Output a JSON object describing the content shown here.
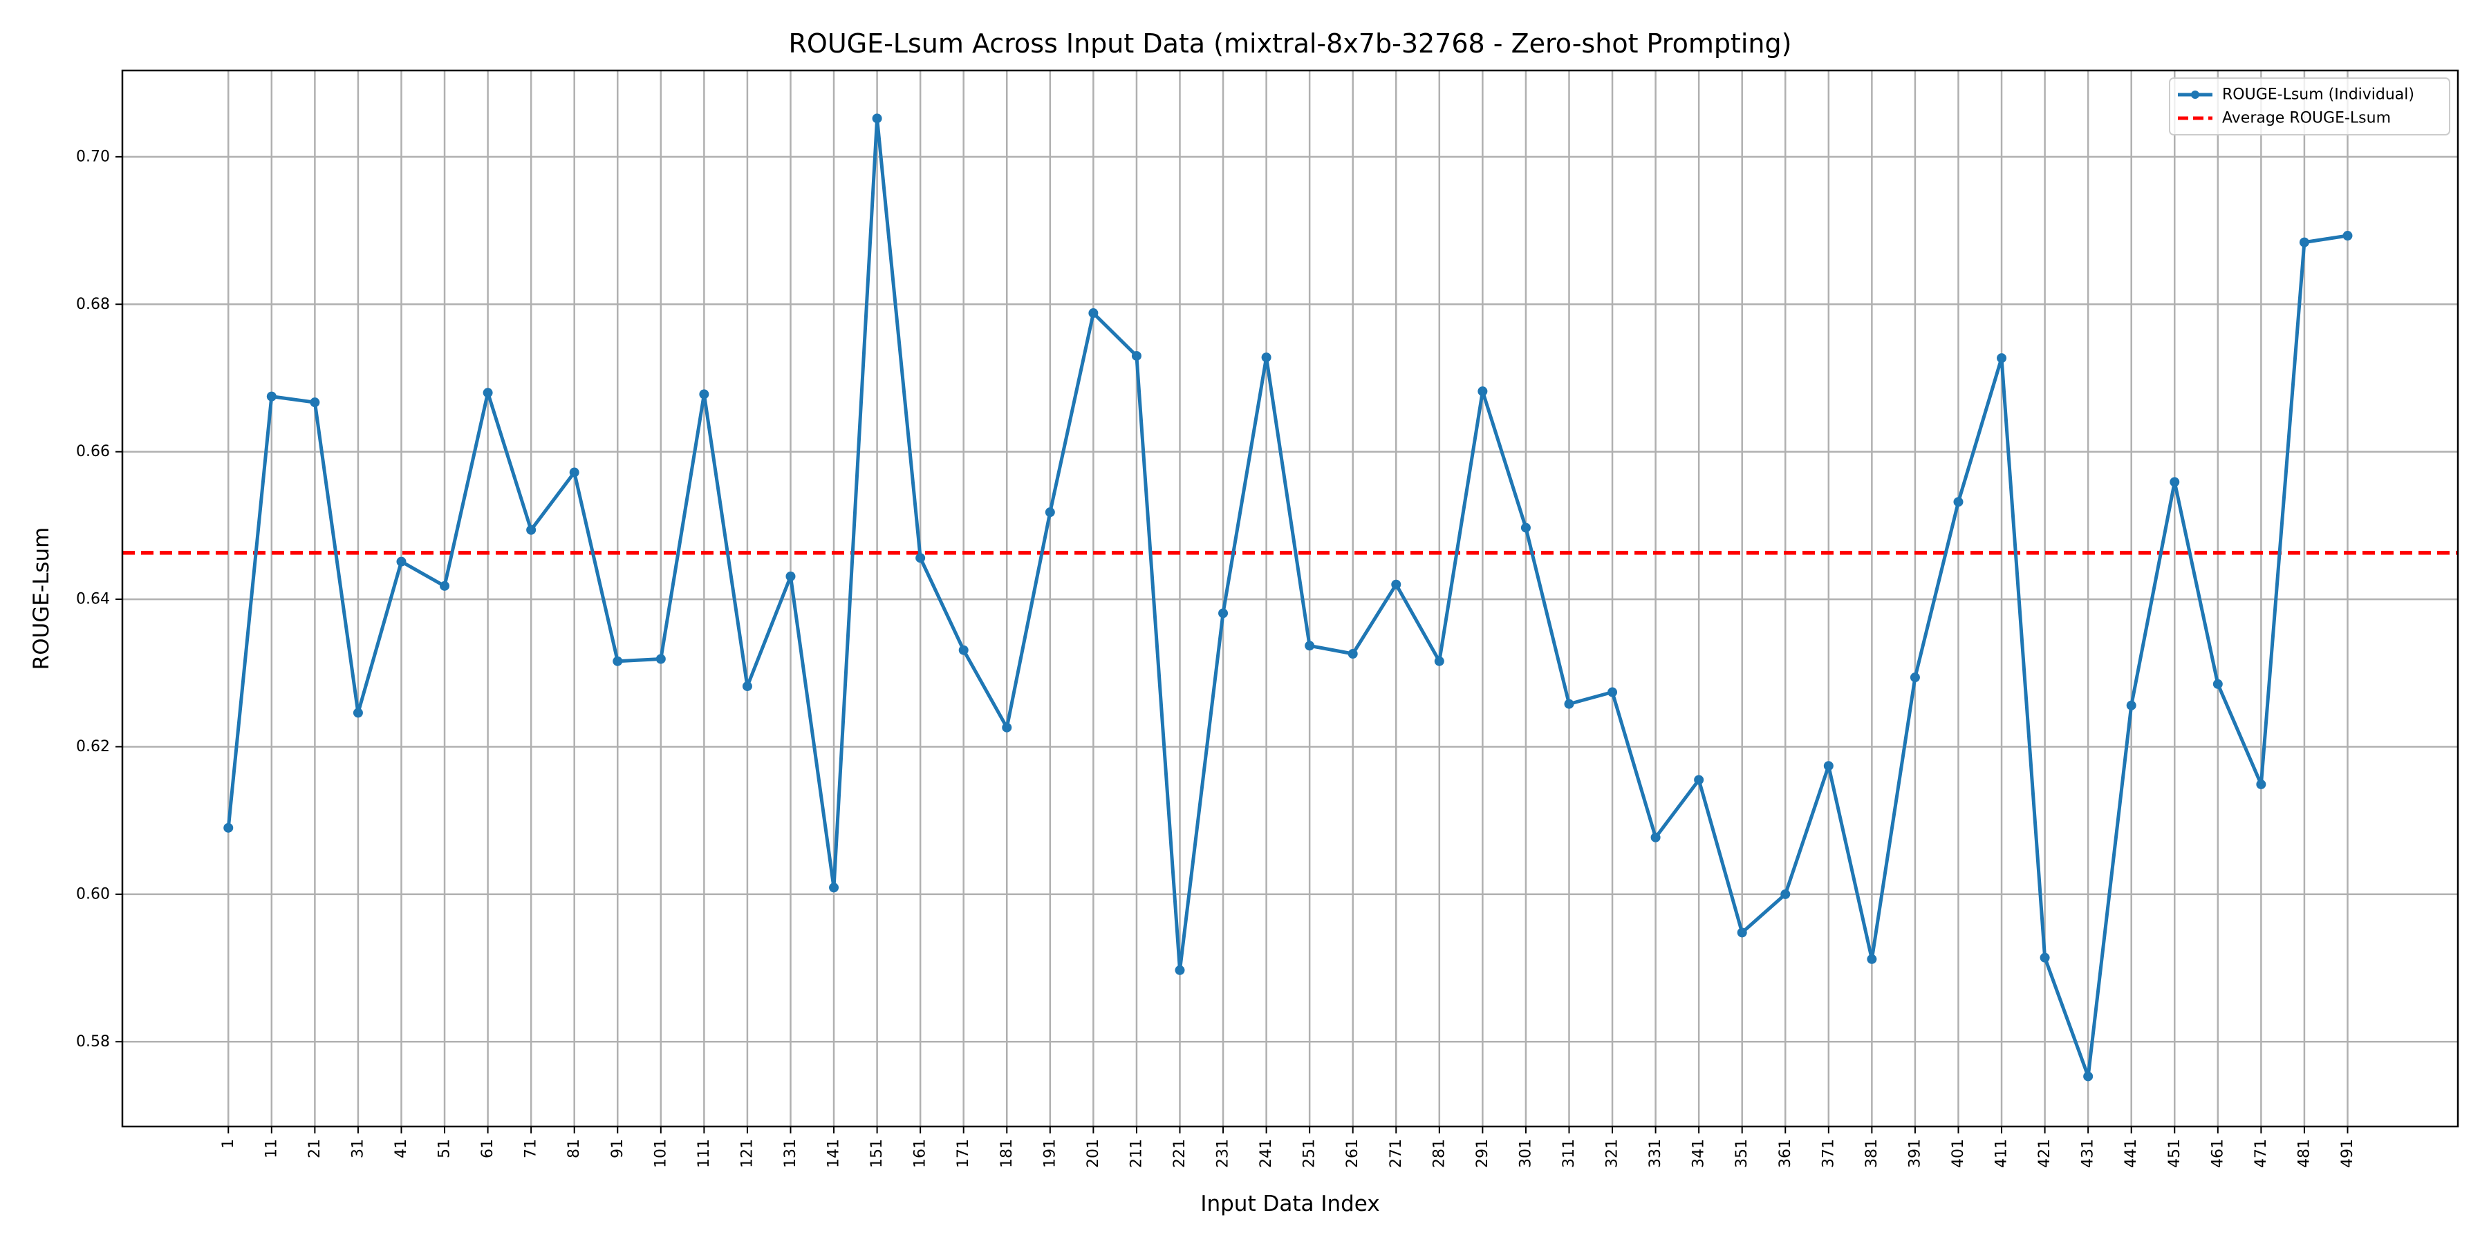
{
  "chart_data": {
    "type": "line",
    "title": "ROUGE-Lsum Across Input Data (mixtral-8x7b-32768 - Zero-shot Prompting)",
    "xlabel": "Input Data Index",
    "ylabel": "ROUGE-Lsum",
    "x": [
      1,
      11,
      21,
      31,
      41,
      51,
      61,
      71,
      81,
      91,
      101,
      111,
      121,
      131,
      141,
      151,
      161,
      171,
      181,
      191,
      201,
      211,
      221,
      231,
      241,
      251,
      261,
      271,
      281,
      291,
      301,
      311,
      321,
      331,
      341,
      351,
      361,
      371,
      381,
      391,
      401,
      411,
      421,
      431,
      441,
      451,
      461,
      471,
      481,
      491
    ],
    "x_tick_labels": [
      "1",
      "11",
      "21",
      "31",
      "41",
      "51",
      "61",
      "71",
      "81",
      "91",
      "101",
      "111",
      "121",
      "131",
      "141",
      "151",
      "161",
      "171",
      "181",
      "191",
      "201",
      "211",
      "221",
      "231",
      "241",
      "251",
      "261",
      "271",
      "281",
      "291",
      "301",
      "311",
      "321",
      "331",
      "341",
      "351",
      "361",
      "371",
      "381",
      "391",
      "401",
      "411",
      "421",
      "431",
      "441",
      "451",
      "461",
      "471",
      "481",
      "491"
    ],
    "y_ticks": [
      0.58,
      0.6,
      0.62,
      0.64,
      0.66,
      0.68,
      0.7
    ],
    "y_tick_labels": [
      "0.58",
      "0.60",
      "0.62",
      "0.64",
      "0.66",
      "0.68",
      "0.70"
    ],
    "ylim": [
      0.5685,
      0.7117
    ],
    "xlim": [
      -23.5,
      516.5
    ],
    "grid": true,
    "legend_position": "top-right",
    "series": [
      {
        "name": "ROUGE-Lsum (Individual)",
        "color": "#1f77b4",
        "style": "solid-with-markers",
        "values": [
          0.609,
          0.6675,
          0.6667,
          0.6246,
          0.6451,
          0.6418,
          0.668,
          0.6494,
          0.6572,
          0.6316,
          0.6319,
          0.6678,
          0.6282,
          0.6431,
          0.6009,
          0.7052,
          0.6456,
          0.6331,
          0.6226,
          0.6518,
          0.6788,
          0.673,
          0.5897,
          0.6381,
          0.6728,
          0.6337,
          0.6326,
          0.642,
          0.6316,
          0.6682,
          0.6497,
          0.6258,
          0.6274,
          0.6077,
          0.6155,
          0.5948,
          0.6,
          0.6174,
          0.5912,
          0.6294,
          0.6532,
          0.6727,
          0.5914,
          0.5753,
          0.6256,
          0.6559,
          0.6285,
          0.6149,
          0.6884,
          0.6893
        ]
      },
      {
        "name": "Average ROUGE-Lsum",
        "color": "#ff0000",
        "style": "dashed",
        "value": 0.6463
      }
    ]
  }
}
